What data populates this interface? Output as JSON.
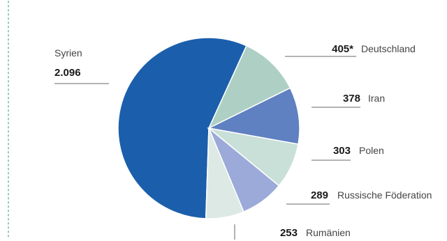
{
  "chart_data": {
    "type": "pie",
    "slices": [
      {
        "label": "Syrien",
        "value_label": "2.096",
        "value": 2096,
        "color": "#1b5fac"
      },
      {
        "label": "Deutschland",
        "value_label": "405*",
        "value": 405,
        "color": "#aecfc4"
      },
      {
        "label": "Iran",
        "value_label": "378",
        "value": 378,
        "color": "#5f80c1"
      },
      {
        "label": "Polen",
        "value_label": "303",
        "value": 303,
        "color": "#c8e0d8"
      },
      {
        "label": "Russische Föderation",
        "value_label": "289",
        "value": 289,
        "color": "#9baad8"
      },
      {
        "label": "Rumänien",
        "value_label": "253",
        "value": 253,
        "color": "#dce9e5"
      }
    ]
  }
}
